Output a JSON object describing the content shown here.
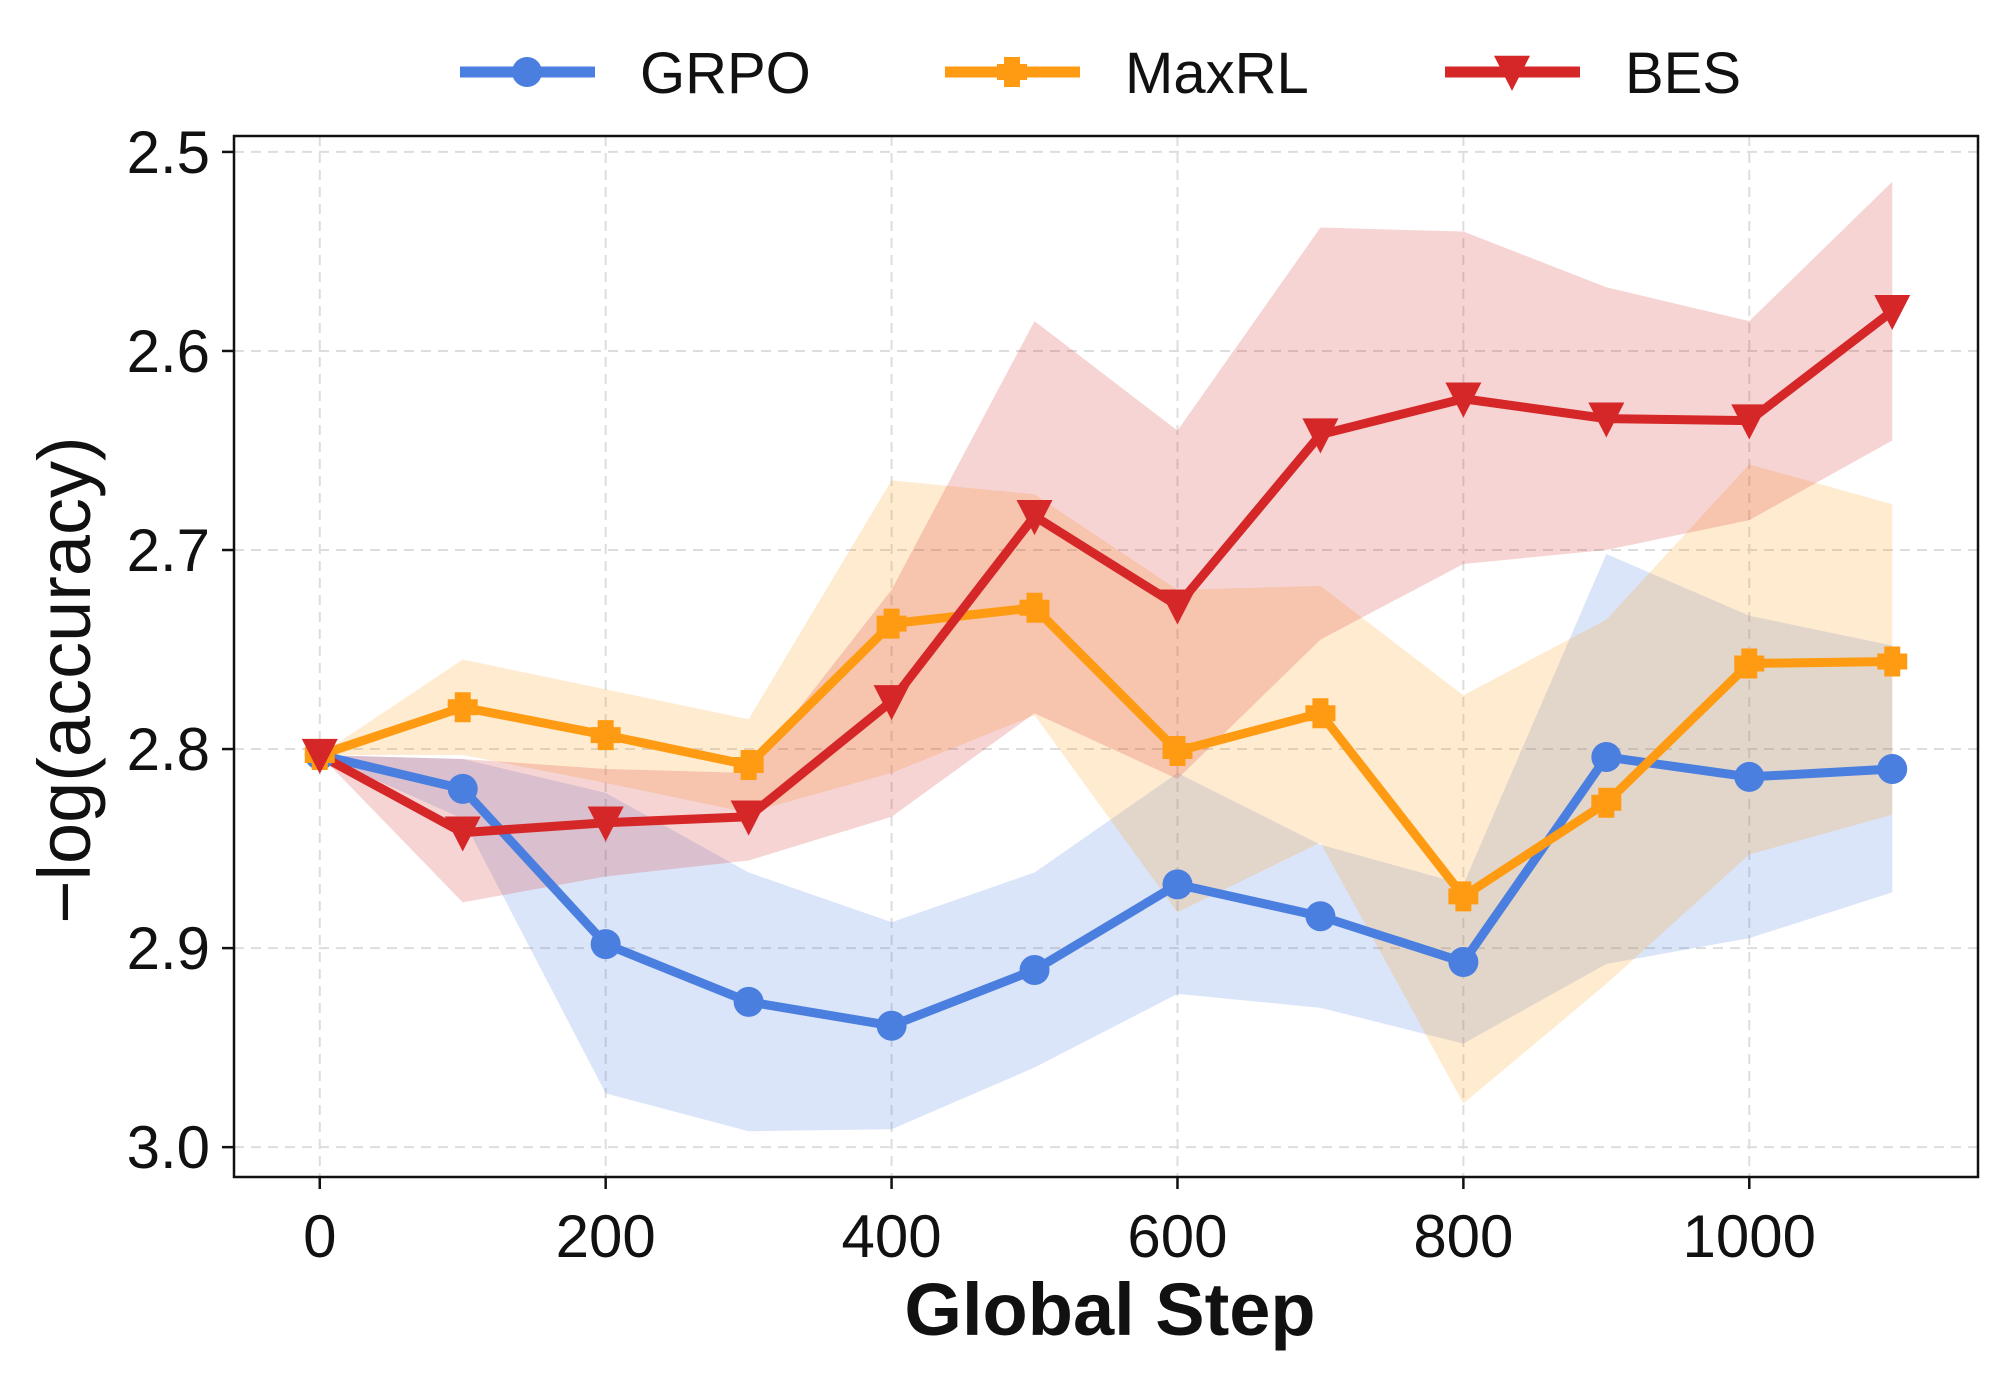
{
  "chart_data": {
    "type": "line",
    "title": "",
    "xlabel": "Global Step",
    "ylabel": "−log(accuracy)",
    "x": [
      0,
      100,
      200,
      300,
      400,
      500,
      600,
      700,
      800,
      900,
      1000,
      1100
    ],
    "xlim": [
      -60,
      1160
    ],
    "ylim": [
      3.015,
      2.492
    ],
    "y_inverted": true,
    "xticks": [
      0,
      200,
      400,
      600,
      800,
      1000
    ],
    "yticks": [
      2.5,
      2.6,
      2.7,
      2.8,
      2.9,
      3.0
    ],
    "ytick_labels": [
      "2.5",
      "2.6",
      "2.7",
      "2.8",
      "2.9",
      "3.0"
    ],
    "grid": true,
    "legend_position": "top-center-outside",
    "series": [
      {
        "name": "GRPO",
        "color": "#4a7fe0",
        "marker": "circle",
        "values": [
          2.803,
          2.82,
          2.898,
          2.927,
          2.939,
          2.911,
          2.868,
          2.884,
          2.907,
          2.804,
          2.814,
          2.81
        ],
        "lower": [
          2.803,
          2.805,
          2.822,
          2.862,
          2.887,
          2.862,
          2.812,
          2.848,
          2.868,
          2.702,
          2.733,
          2.748
        ],
        "upper": [
          2.803,
          2.835,
          2.973,
          2.992,
          2.991,
          2.96,
          2.923,
          2.93,
          2.948,
          2.908,
          2.895,
          2.872
        ]
      },
      {
        "name": "MaxRL",
        "color": "#ff9b12",
        "marker": "plus",
        "values": [
          2.803,
          2.779,
          2.793,
          2.808,
          2.737,
          2.729,
          2.801,
          2.782,
          2.874,
          2.827,
          2.757,
          2.756
        ],
        "lower": [
          2.803,
          2.755,
          2.77,
          2.785,
          2.665,
          2.672,
          2.72,
          2.718,
          2.773,
          2.735,
          2.657,
          2.677
        ],
        "upper": [
          2.803,
          2.803,
          2.817,
          2.832,
          2.812,
          2.783,
          2.882,
          2.847,
          2.978,
          2.918,
          2.853,
          2.833
        ]
      },
      {
        "name": "BES",
        "color": "#d62728",
        "marker": "triangle-down",
        "values": [
          2.803,
          2.842,
          2.837,
          2.834,
          2.776,
          2.683,
          2.728,
          2.642,
          2.624,
          2.634,
          2.635,
          2.58
        ],
        "lower": [
          2.803,
          2.805,
          2.81,
          2.812,
          2.72,
          2.585,
          2.64,
          2.538,
          2.54,
          2.568,
          2.585,
          2.515
        ],
        "upper": [
          2.803,
          2.877,
          2.864,
          2.856,
          2.834,
          2.782,
          2.815,
          2.745,
          2.707,
          2.7,
          2.685,
          2.645
        ]
      }
    ]
  }
}
